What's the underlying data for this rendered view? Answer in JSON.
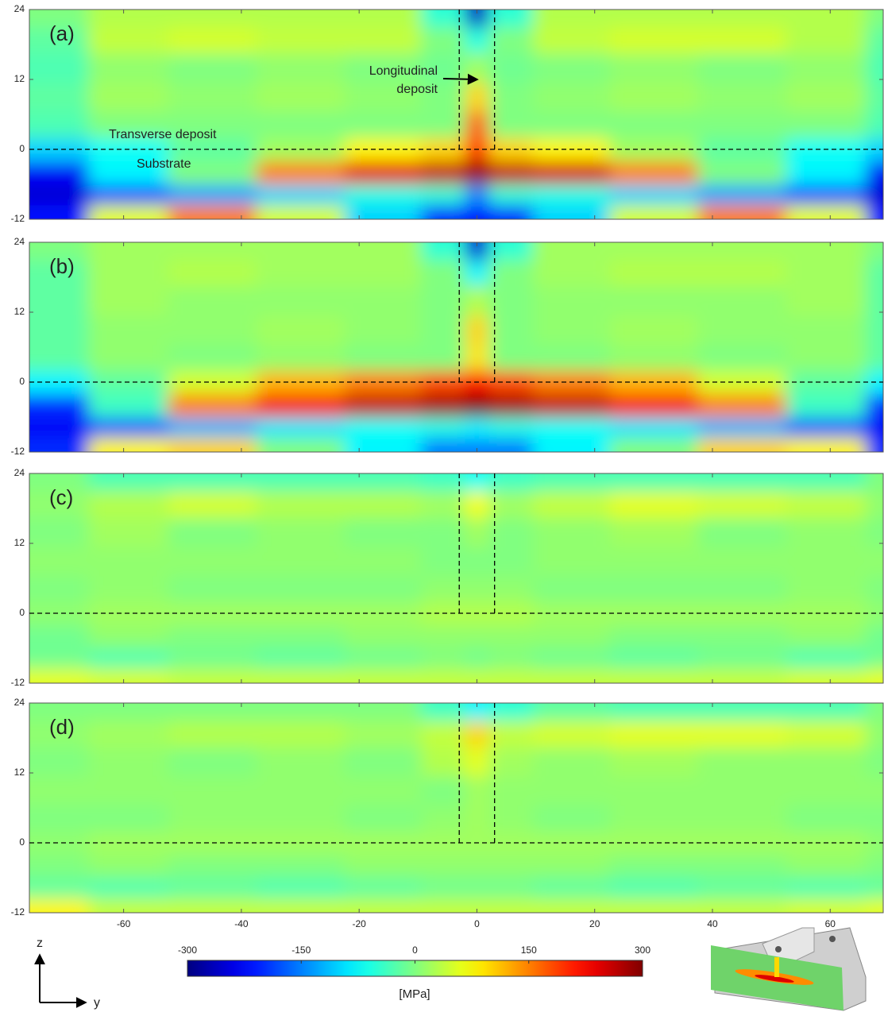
{
  "chart_data": [
    {
      "type": "heatmap",
      "title": "(a)",
      "x": [
        -72,
        -60,
        -45,
        -30,
        -15,
        -4,
        0,
        4,
        15,
        30,
        45,
        60,
        72
      ],
      "y": [
        -11,
        -8,
        -4,
        0,
        4,
        9,
        14,
        19,
        23
      ],
      "values": [
        [
          -220,
          60,
          150,
          50,
          -100,
          -200,
          -220,
          -200,
          -100,
          50,
          150,
          60,
          -220
        ],
        [
          -250,
          -180,
          -130,
          -100,
          -60,
          -50,
          -150,
          -50,
          -60,
          -100,
          -130,
          -180,
          -250
        ],
        [
          -230,
          -80,
          0,
          150,
          240,
          260,
          290,
          260,
          250,
          150,
          0,
          -80,
          -230
        ],
        [
          -100,
          -70,
          -20,
          20,
          80,
          100,
          200,
          100,
          80,
          20,
          -20,
          -70,
          -100
        ],
        [
          -30,
          0,
          0,
          0,
          0,
          0,
          170,
          0,
          0,
          0,
          0,
          0,
          -30
        ],
        [
          -20,
          20,
          10,
          20,
          10,
          0,
          100,
          0,
          10,
          20,
          10,
          20,
          -20
        ],
        [
          -30,
          10,
          0,
          10,
          0,
          -10,
          20,
          -10,
          0,
          10,
          0,
          10,
          -30
        ],
        [
          -20,
          40,
          50,
          40,
          40,
          0,
          -60,
          0,
          40,
          50,
          50,
          30,
          -20
        ],
        [
          0,
          30,
          30,
          30,
          30,
          -50,
          -260,
          -50,
          30,
          30,
          30,
          30,
          0
        ]
      ],
      "ylim": [
        -12,
        24
      ],
      "yticks": [
        -12,
        0,
        12,
        24
      ],
      "annotations": {
        "longitudinal": [
          "Longitudinal",
          "deposit"
        ],
        "transverse": "Transverse deposit",
        "substrate": "Substrate"
      }
    },
    {
      "type": "heatmap",
      "title": "(b)",
      "x": [
        -72,
        -60,
        -45,
        -30,
        -15,
        -4,
        0,
        4,
        15,
        30,
        45,
        60,
        72
      ],
      "y": [
        -11,
        -8,
        -4,
        0,
        4,
        9,
        14,
        19,
        23
      ],
      "values": [
        [
          -200,
          80,
          100,
          0,
          -80,
          -150,
          -150,
          -150,
          -80,
          0,
          100,
          80,
          -200
        ],
        [
          -230,
          -170,
          -120,
          -90,
          -70,
          -60,
          -80,
          -60,
          -70,
          -90,
          -120,
          -170,
          -230
        ],
        [
          -200,
          -40,
          150,
          230,
          260,
          280,
          300,
          280,
          260,
          230,
          150,
          -40,
          -200
        ],
        [
          -80,
          -20,
          50,
          120,
          150,
          180,
          220,
          180,
          150,
          120,
          50,
          -20,
          -80
        ],
        [
          -20,
          10,
          0,
          10,
          0,
          0,
          90,
          0,
          0,
          10,
          0,
          10,
          -20
        ],
        [
          -20,
          10,
          10,
          20,
          10,
          0,
          100,
          0,
          10,
          20,
          10,
          10,
          -20
        ],
        [
          -20,
          20,
          10,
          10,
          10,
          0,
          30,
          0,
          10,
          10,
          10,
          20,
          -20
        ],
        [
          -20,
          20,
          30,
          20,
          20,
          0,
          -80,
          0,
          20,
          30,
          30,
          20,
          -20
        ],
        [
          0,
          20,
          20,
          20,
          20,
          -50,
          -250,
          -50,
          20,
          20,
          20,
          20,
          0
        ]
      ],
      "ylim": [
        -12,
        24
      ],
      "yticks": [
        -12,
        0,
        12,
        24
      ]
    },
    {
      "type": "heatmap",
      "title": "(c)",
      "x": [
        -72,
        -60,
        -45,
        -30,
        -15,
        -4,
        0,
        4,
        15,
        30,
        45,
        60,
        72
      ],
      "y": [
        -11,
        -8,
        -4,
        0,
        4,
        9,
        14,
        19,
        23
      ],
      "values": [
        [
          60,
          50,
          40,
          40,
          40,
          40,
          40,
          40,
          40,
          40,
          40,
          50,
          60
        ],
        [
          -10,
          -30,
          -10,
          -20,
          -10,
          0,
          -10,
          0,
          -10,
          -20,
          -10,
          -30,
          -10
        ],
        [
          -10,
          10,
          0,
          0,
          10,
          10,
          10,
          10,
          10,
          0,
          0,
          10,
          -10
        ],
        [
          10,
          20,
          20,
          20,
          20,
          30,
          30,
          30,
          20,
          20,
          20,
          20,
          10
        ],
        [
          0,
          10,
          0,
          0,
          0,
          10,
          10,
          10,
          0,
          0,
          0,
          10,
          0
        ],
        [
          10,
          10,
          10,
          10,
          10,
          0,
          0,
          0,
          10,
          10,
          10,
          10,
          10
        ],
        [
          0,
          20,
          0,
          10,
          0,
          0,
          20,
          0,
          10,
          20,
          0,
          10,
          0
        ],
        [
          10,
          30,
          50,
          30,
          30,
          20,
          70,
          20,
          40,
          60,
          50,
          40,
          10
        ],
        [
          0,
          -30,
          -30,
          -30,
          -30,
          -40,
          -70,
          -40,
          -30,
          -30,
          -30,
          -30,
          0
        ]
      ],
      "ylim": [
        -12,
        24
      ],
      "yticks": [
        -12,
        0,
        12,
        24
      ]
    },
    {
      "type": "heatmap",
      "title": "(d)",
      "x": [
        -72,
        -60,
        -45,
        -30,
        -15,
        -4,
        0,
        4,
        15,
        30,
        45,
        60,
        72
      ],
      "y": [
        -11,
        -8,
        -4,
        0,
        4,
        9,
        14,
        19,
        23
      ],
      "values": [
        [
          80,
          40,
          40,
          40,
          40,
          40,
          40,
          40,
          40,
          40,
          40,
          50,
          60
        ],
        [
          -20,
          -30,
          -20,
          -30,
          -20,
          -10,
          -10,
          -10,
          -20,
          -30,
          -20,
          -30,
          -20
        ],
        [
          0,
          10,
          0,
          0,
          10,
          10,
          10,
          10,
          10,
          0,
          0,
          10,
          0
        ],
        [
          10,
          20,
          20,
          20,
          20,
          20,
          20,
          20,
          20,
          20,
          20,
          20,
          10
        ],
        [
          0,
          0,
          10,
          10,
          0,
          10,
          20,
          10,
          0,
          10,
          10,
          0,
          0
        ],
        [
          10,
          10,
          10,
          10,
          10,
          0,
          20,
          10,
          10,
          10,
          10,
          10,
          10
        ],
        [
          0,
          10,
          0,
          10,
          0,
          30,
          60,
          20,
          10,
          20,
          10,
          10,
          0
        ],
        [
          10,
          20,
          30,
          30,
          20,
          40,
          100,
          40,
          50,
          60,
          60,
          50,
          10
        ],
        [
          0,
          0,
          0,
          0,
          0,
          -40,
          -80,
          -50,
          -20,
          -30,
          -30,
          -30,
          0
        ]
      ],
      "ylim": [
        -12,
        24
      ],
      "yticks": [
        -12,
        0,
        12,
        24
      ]
    }
  ],
  "x_axis": {
    "xlim": [
      -76,
      69
    ],
    "xticks": [
      -60,
      -40,
      -20,
      0,
      20,
      40,
      60
    ]
  },
  "boundaries": {
    "x": [
      -3,
      3
    ],
    "z": 0
  },
  "colorbar": {
    "colormap": "jet",
    "lim": [
      -300,
      300
    ],
    "ticks": [
      -300,
      -150,
      0,
      150,
      300
    ],
    "label": "[MPa]"
  },
  "axes_glyph": {
    "vertical": "z",
    "horizontal": "y"
  }
}
